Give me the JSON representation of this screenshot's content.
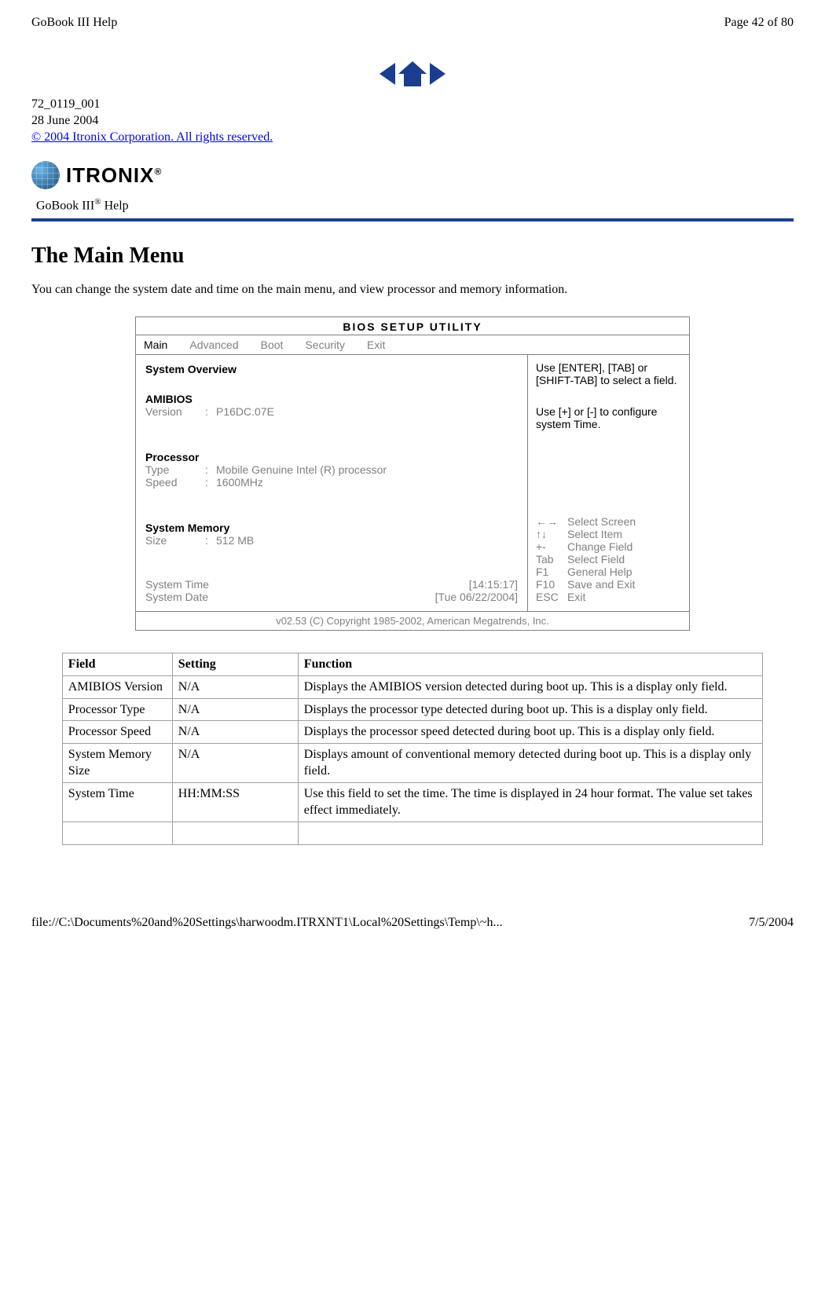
{
  "header": {
    "left": "GoBook III Help",
    "right": "Page 42 of 80"
  },
  "meta": {
    "doc_id": "72_0119_001",
    "date": "28 June 2004",
    "copyright": "© 2004 Itronix Corporation.  All rights reserved."
  },
  "logo": {
    "brand": "ITRONIX",
    "sup": "®"
  },
  "help_line_prefix": "GoBook III",
  "help_line_sup": "®",
  "help_line_suffix": " Help",
  "title": "The Main Menu",
  "intro": "You can change the system date and time on the main menu, and view processor and memory information.",
  "bios": {
    "title": "BIOS   SETUP   UTILITY",
    "tabs": [
      "Main",
      "Advanced",
      "Boot",
      "Security",
      "Exit"
    ],
    "overview_title": "System Overview",
    "amibios_title": "AMIBIOS",
    "amibios_version_label": "Version",
    "amibios_version_value": "P16DC.07E",
    "processor_title": "Processor",
    "processor_type_label": "Type",
    "processor_type_value": "Mobile Genuine Intel (R) processor",
    "processor_speed_label": "Speed",
    "processor_speed_value": "1600MHz",
    "memory_title": "System Memory",
    "memory_size_label": "Size",
    "memory_size_value": "512 MB",
    "system_time_label": "System Time",
    "system_time_value": "[14:15:17]",
    "system_date_label": "System Date",
    "system_date_value": "[Tue 06/22/2004]",
    "hint1": "Use [ENTER], [TAB] or [SHIFT-TAB] to select a field.",
    "hint2": "Use [+] or [-] to configure system Time.",
    "keys": [
      {
        "sym": "←→",
        "label": "Select Screen"
      },
      {
        "sym": "↑↓",
        "label": "Select Item"
      },
      {
        "sym": "+-",
        "label": "Change Field"
      },
      {
        "sym": "Tab",
        "label": "Select Field"
      },
      {
        "sym": "F1",
        "label": "General Help"
      },
      {
        "sym": "F10",
        "label": "Save and Exit"
      },
      {
        "sym": "ESC",
        "label": "Exit"
      }
    ],
    "footer": "v02.53 (C) Copyright 1985-2002, American Megatrends, Inc."
  },
  "table": {
    "headers": [
      "Field",
      "Setting",
      "Function"
    ],
    "rows": [
      {
        "field": "AMIBIOS Version",
        "setting": "N/A",
        "function": "Displays the AMIBIOS version detected during boot up. This is a display only field."
      },
      {
        "field": "Processor Type",
        "setting": "N/A",
        "function": "Displays the processor type detected during boot up. This is a display only field."
      },
      {
        "field": "Processor Speed",
        "setting": "N/A",
        "function": "Displays the processor speed detected during boot up. This is a display only field."
      },
      {
        "field": "System Memory Size",
        "setting": "N/A",
        "function": "Displays amount of conventional memory detected during boot up. This is a display only field."
      },
      {
        "field": "System Time",
        "setting": "HH:MM:SS",
        "function": "Use this field to set the time.  The time is displayed in 24 hour format.  The value set takes effect immediately."
      }
    ]
  },
  "footer": {
    "path": "file://C:\\Documents%20and%20Settings\\harwoodm.ITRXNT1\\Local%20Settings\\Temp\\~h...",
    "date": "7/5/2004"
  }
}
